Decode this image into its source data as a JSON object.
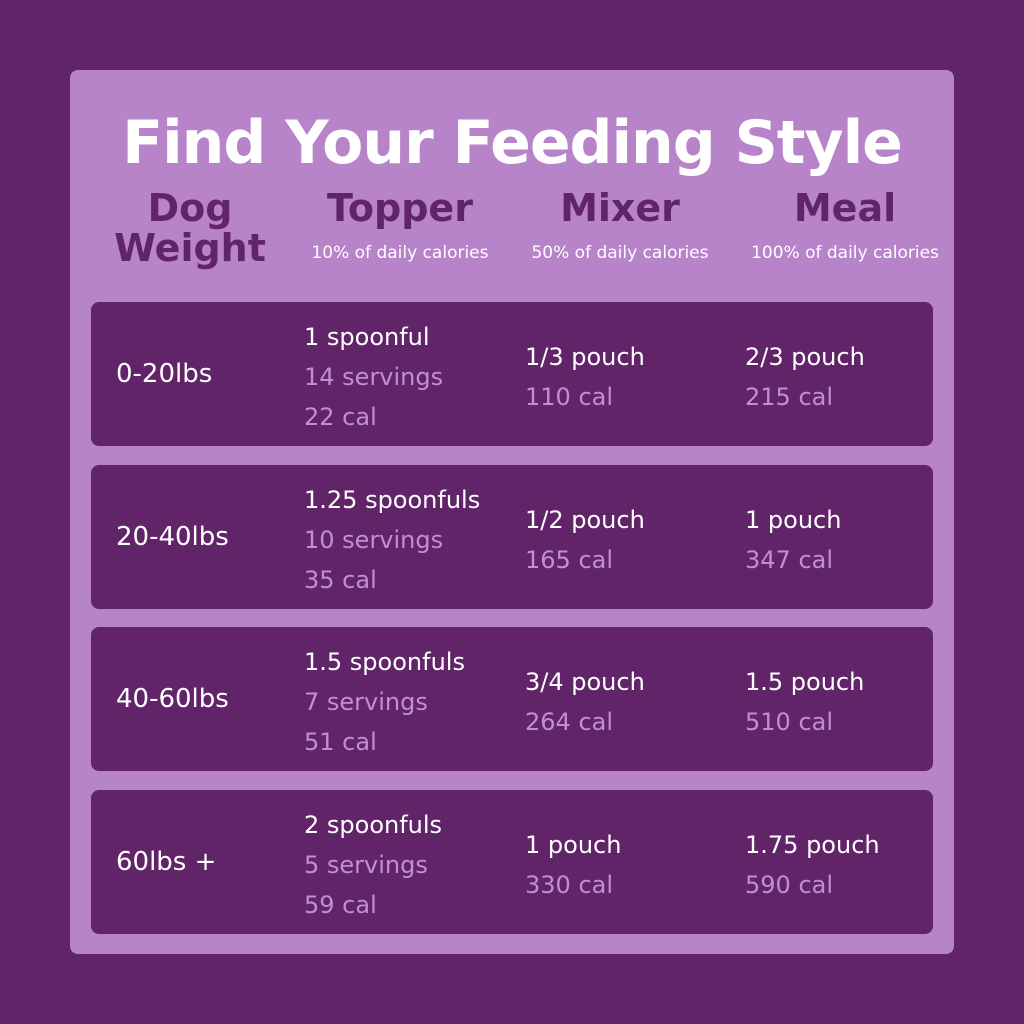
{
  "title": "Find Your Feeding Style",
  "columns": [
    {
      "name": "Dog\nWeight"
    },
    {
      "name": "Topper",
      "sub": "10% of daily calories"
    },
    {
      "name": "Mixer",
      "sub": "50% of daily calories"
    },
    {
      "name": "Meal",
      "sub": "100% of daily calories"
    }
  ],
  "rows": [
    {
      "weight": "0-20lbs",
      "topper": [
        "1 spoonful",
        "14 servings",
        "22 cal"
      ],
      "mixer": [
        "1/3 pouch",
        "110 cal"
      ],
      "meal": [
        "2/3 pouch",
        "215 cal"
      ]
    },
    {
      "weight": "20-40lbs",
      "topper": [
        "1.25 spoonfuls",
        "10 servings",
        "35 cal"
      ],
      "mixer": [
        "1/2 pouch",
        "165 cal"
      ],
      "meal": [
        "1 pouch",
        "347 cal"
      ]
    },
    {
      "weight": "40-60lbs",
      "topper": [
        "1.5 spoonfuls",
        "7 servings",
        "51 cal"
      ],
      "mixer": [
        "3/4 pouch",
        "264 cal"
      ],
      "meal": [
        "1.5 pouch",
        "510 cal"
      ]
    },
    {
      "weight": "60lbs +",
      "topper": [
        "2 spoonfuls",
        "5 servings",
        "59 cal"
      ],
      "mixer": [
        "1 pouch",
        "330 cal"
      ],
      "meal": [
        "1.75 pouch",
        "590 cal"
      ]
    }
  ]
}
